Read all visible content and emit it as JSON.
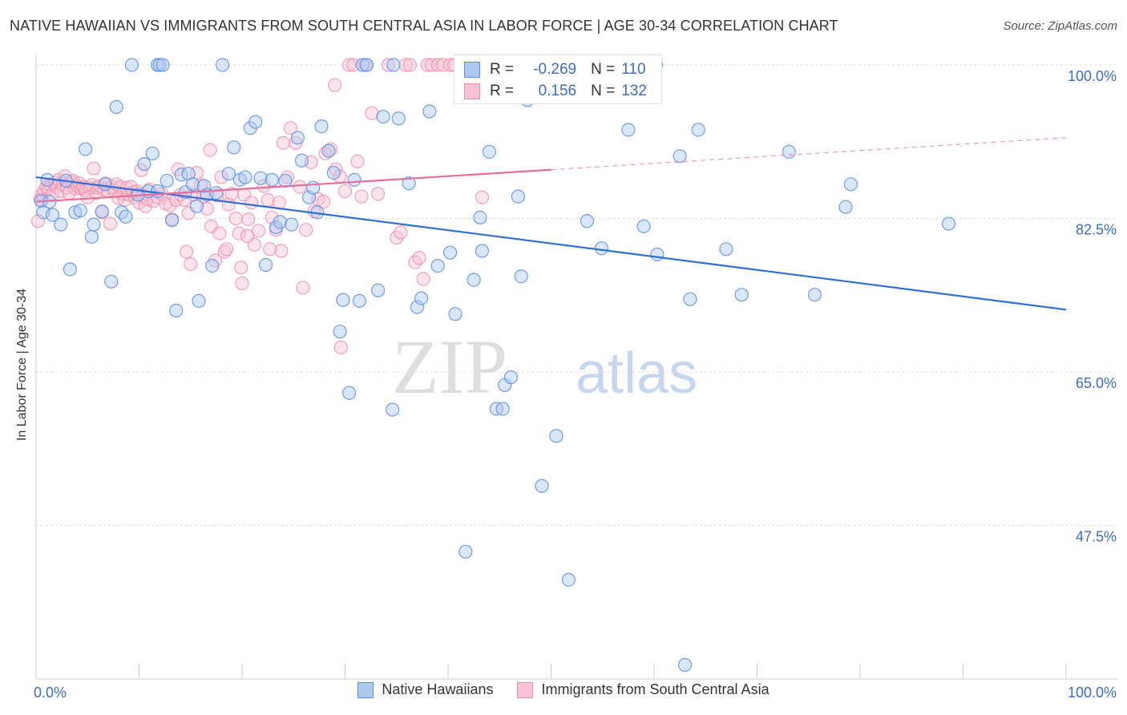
{
  "header": {
    "title": "NATIVE HAWAIIAN VS IMMIGRANTS FROM SOUTH CENTRAL ASIA IN LABOR FORCE | AGE 30-34 CORRELATION CHART",
    "source": "Source: ZipAtlas.com"
  },
  "watermark": {
    "zip": "ZIP",
    "atlas": "atlas"
  },
  "stats": {
    "blue": {
      "r_label": "R =",
      "r_value": "-0.269",
      "n_label": "N =",
      "n_value": "110"
    },
    "pink": {
      "r_label": "R =",
      "r_value": "0.156",
      "n_label": "N =",
      "n_value": "132"
    }
  },
  "legend": {
    "blue_label": "Native Hawaiians",
    "pink_label": "Immigrants from South Central Asia"
  },
  "colors": {
    "blue": "#5b8ee6",
    "blue_fill": "#aec8f2",
    "blue_line": "#2f6fd1",
    "pink": "#f08cab",
    "pink_fill": "#f7c3d3",
    "pink_line": "#e4709a",
    "axis_text": "#3d6cc8",
    "grid": "#dddddd"
  },
  "chart_data": {
    "type": "scatter",
    "title": "NATIVE HAWAIIAN VS IMMIGRANTS FROM SOUTH CENTRAL ASIA IN LABOR FORCE | AGE 30-34 CORRELATION CHART",
    "xlabel": "",
    "ylabel": "In Labor Force | Age 30-34",
    "xlim": [
      0,
      100
    ],
    "ylim": [
      30,
      100
    ],
    "x_tick_labels": [
      "0.0%",
      "100.0%"
    ],
    "y_ticks": [
      47.5,
      65.0,
      82.5,
      100.0
    ],
    "y_tick_labels": [
      "47.5%",
      "65.0%",
      "82.5%",
      "100.0%"
    ],
    "grid": true,
    "legend_position": "bottom",
    "series": [
      {
        "name": "Native Hawaiians",
        "color": "#5b8ee6",
        "r": -0.269,
        "n": 110,
        "trend": {
          "x": [
            0,
            100
          ],
          "y": [
            87.2,
            72.1
          ],
          "style": "solid"
        },
        "points": [
          [
            0.5,
            84.5
          ],
          [
            0.7,
            83.2
          ],
          [
            1.1,
            86.9
          ],
          [
            1.3,
            84.4
          ],
          [
            1.6,
            82.9
          ],
          [
            2.4,
            81.8
          ],
          [
            2.9,
            86.8
          ],
          [
            3.3,
            76.7
          ],
          [
            3.8,
            83.2
          ],
          [
            4.3,
            83.4
          ],
          [
            4.8,
            90.4
          ],
          [
            5.4,
            80.4
          ],
          [
            5.6,
            81.8
          ],
          [
            6.4,
            83.3
          ],
          [
            6.7,
            86.4
          ],
          [
            7.3,
            75.3
          ],
          [
            7.8,
            95.2
          ],
          [
            8.3,
            83.2
          ],
          [
            8.7,
            82.7
          ],
          [
            9.3,
            100
          ],
          [
            9.9,
            85.2
          ],
          [
            10.5,
            88.7
          ],
          [
            10.9,
            85.6
          ],
          [
            11.3,
            89.9
          ],
          [
            11.8,
            85.6
          ],
          [
            11.8,
            100
          ],
          [
            12.0,
            100
          ],
          [
            12.3,
            100
          ],
          [
            12.7,
            86.8
          ],
          [
            13.2,
            82.3
          ],
          [
            13.6,
            72.0
          ],
          [
            14.1,
            87.5
          ],
          [
            14.5,
            85.5
          ],
          [
            14.8,
            87.6
          ],
          [
            15.2,
            86.4
          ],
          [
            15.6,
            83.9
          ],
          [
            15.8,
            73.1
          ],
          [
            16.3,
            86.2
          ],
          [
            16.6,
            85.2
          ],
          [
            17.1,
            77.1
          ],
          [
            17.5,
            85.4
          ],
          [
            18.1,
            100
          ],
          [
            18.7,
            87.6
          ],
          [
            19.2,
            90.6
          ],
          [
            19.8,
            86.9
          ],
          [
            20.3,
            87.2
          ],
          [
            20.8,
            92.8
          ],
          [
            21.3,
            93.5
          ],
          [
            21.8,
            87.1
          ],
          [
            22.3,
            77.2
          ],
          [
            22.9,
            86.9
          ],
          [
            23.3,
            81.5
          ],
          [
            23.7,
            82.1
          ],
          [
            24.2,
            86.8
          ],
          [
            24.8,
            81.8
          ],
          [
            25.4,
            91.7
          ],
          [
            25.8,
            89.1
          ],
          [
            26.5,
            84.9
          ],
          [
            26.9,
            86.0
          ],
          [
            27.3,
            83.2
          ],
          [
            27.7,
            93.0
          ],
          [
            28.4,
            90.2
          ],
          [
            28.9,
            87.7
          ],
          [
            29.5,
            69.6
          ],
          [
            29.8,
            73.2
          ],
          [
            30.4,
            62.6
          ],
          [
            30.9,
            86.9
          ],
          [
            31.4,
            73.1
          ],
          [
            31.7,
            100
          ],
          [
            32.1,
            100
          ],
          [
            33.2,
            74.3
          ],
          [
            33.7,
            94.1
          ],
          [
            34.6,
            60.7
          ],
          [
            34.7,
            100
          ],
          [
            35.2,
            93.9
          ],
          [
            36.2,
            86.5
          ],
          [
            37.0,
            72.4
          ],
          [
            37.4,
            73.4
          ],
          [
            38.2,
            94.7
          ],
          [
            39.0,
            77.1
          ],
          [
            40.2,
            78.6
          ],
          [
            40.7,
            71.6
          ],
          [
            41.7,
            44.5
          ],
          [
            42.5,
            75.5
          ],
          [
            43.1,
            82.6
          ],
          [
            43.3,
            78.8
          ],
          [
            44.0,
            90.1
          ],
          [
            44.7,
            60.8
          ],
          [
            45.3,
            60.8
          ],
          [
            45.5,
            63.5
          ],
          [
            46.1,
            64.4
          ],
          [
            46.8,
            85.0
          ],
          [
            47.1,
            75.9
          ],
          [
            47.7,
            96.0
          ],
          [
            49.1,
            52.0
          ],
          [
            50.5,
            57.7
          ],
          [
            51.7,
            41.3
          ],
          [
            53.5,
            82.2
          ],
          [
            54.9,
            79.1
          ],
          [
            57.5,
            92.6
          ],
          [
            59.0,
            81.6
          ],
          [
            60.3,
            78.4
          ],
          [
            62.5,
            89.6
          ],
          [
            63.5,
            73.3
          ],
          [
            64.3,
            92.6
          ],
          [
            67.0,
            79.0
          ],
          [
            68.5,
            73.8
          ],
          [
            73.1,
            90.1
          ],
          [
            75.6,
            73.8
          ],
          [
            78.6,
            83.8
          ],
          [
            79.1,
            86.4
          ],
          [
            88.6,
            81.9
          ],
          [
            63.0,
            31.6
          ],
          [
            60.2,
            100
          ]
        ]
      },
      {
        "name": "Immigrants from South Central Asia",
        "color": "#f08cab",
        "r": 0.156,
        "n": 132,
        "trend": {
          "x": [
            0,
            100
          ],
          "y": [
            84.4,
            91.7
          ],
          "style": "solid-to-dashed",
          "solid_until": 50
        },
        "points": [
          [
            0.2,
            82.2
          ],
          [
            0.4,
            84.7
          ],
          [
            0.6,
            85.2
          ],
          [
            0.8,
            85.7
          ],
          [
            1.0,
            86.1
          ],
          [
            1.2,
            85.9
          ],
          [
            1.4,
            86.3
          ],
          [
            1.6,
            85.3
          ],
          [
            1.8,
            86.6
          ],
          [
            2.0,
            86.1
          ],
          [
            2.2,
            86.9
          ],
          [
            2.4,
            85.6
          ],
          [
            2.6,
            86.4
          ],
          [
            2.8,
            87.3
          ],
          [
            3.0,
            86.0
          ],
          [
            3.2,
            85.4
          ],
          [
            3.4,
            86.7
          ],
          [
            3.6,
            86.8
          ],
          [
            3.8,
            85.9
          ],
          [
            4.0,
            86.2
          ],
          [
            4.2,
            86.5
          ],
          [
            4.4,
            85.9
          ],
          [
            4.6,
            86.1
          ],
          [
            4.8,
            85.7
          ],
          [
            5.0,
            84.9
          ],
          [
            5.2,
            86.0
          ],
          [
            5.4,
            86.3
          ],
          [
            5.6,
            88.2
          ],
          [
            5.8,
            85.4
          ],
          [
            6.0,
            86.0
          ],
          [
            6.2,
            86.2
          ],
          [
            6.4,
            83.2
          ],
          [
            6.6,
            85.8
          ],
          [
            6.8,
            86.5
          ],
          [
            7.0,
            85.6
          ],
          [
            7.2,
            81.9
          ],
          [
            7.4,
            86.1
          ],
          [
            7.6,
            85.7
          ],
          [
            7.8,
            86.4
          ],
          [
            8.0,
            84.8
          ],
          [
            8.2,
            86.1
          ],
          [
            8.4,
            85.3
          ],
          [
            8.6,
            84.6
          ],
          [
            8.8,
            86.0
          ],
          [
            9.0,
            85.2
          ],
          [
            9.2,
            86.1
          ],
          [
            9.4,
            85.5
          ],
          [
            9.6,
            84.9
          ],
          [
            9.8,
            85.6
          ],
          [
            10.0,
            84.3
          ],
          [
            10.2,
            88.0
          ],
          [
            10.4,
            85.1
          ],
          [
            10.6,
            83.9
          ],
          [
            10.8,
            84.7
          ],
          [
            11.0,
            85.8
          ],
          [
            11.4,
            84.5
          ],
          [
            11.8,
            84.9
          ],
          [
            12.2,
            85.3
          ],
          [
            12.6,
            84.2
          ],
          [
            13.0,
            84.0
          ],
          [
            13.2,
            82.4
          ],
          [
            13.6,
            84.6
          ],
          [
            13.8,
            88.1
          ],
          [
            14.0,
            85.2
          ],
          [
            14.4,
            84.6
          ],
          [
            14.6,
            78.7
          ],
          [
            14.8,
            83.1
          ],
          [
            15.0,
            77.3
          ],
          [
            15.3,
            85.2
          ],
          [
            15.6,
            87.7
          ],
          [
            16.0,
            86.3
          ],
          [
            16.2,
            85.0
          ],
          [
            16.6,
            83.6
          ],
          [
            17.0,
            81.6
          ],
          [
            17.4,
            77.7
          ],
          [
            17.6,
            85.1
          ],
          [
            17.8,
            80.8
          ],
          [
            18.0,
            87.2
          ],
          [
            18.3,
            78.7
          ],
          [
            18.5,
            79.0
          ],
          [
            18.7,
            84.1
          ],
          [
            19.0,
            85.3
          ],
          [
            19.4,
            82.5
          ],
          [
            19.7,
            80.8
          ],
          [
            19.9,
            76.9
          ],
          [
            20.0,
            75.1
          ],
          [
            20.2,
            85.2
          ],
          [
            20.6,
            82.4
          ],
          [
            20.9,
            84.3
          ],
          [
            21.2,
            79.5
          ],
          [
            21.6,
            81.1
          ],
          [
            22.1,
            86.2
          ],
          [
            22.5,
            84.6
          ],
          [
            22.9,
            82.6
          ],
          [
            23.3,
            81.2
          ],
          [
            23.6,
            84.3
          ],
          [
            24.0,
            91.1
          ],
          [
            24.4,
            87.2
          ],
          [
            24.7,
            92.8
          ],
          [
            25.2,
            91.1
          ],
          [
            25.6,
            86.1
          ],
          [
            25.9,
            74.6
          ],
          [
            26.2,
            81.2
          ],
          [
            26.7,
            88.9
          ],
          [
            27.0,
            83.3
          ],
          [
            27.4,
            84.7
          ],
          [
            28.1,
            89.9
          ],
          [
            28.6,
            90.4
          ],
          [
            29.1,
            88.1
          ],
          [
            29.5,
            87.3
          ],
          [
            29.6,
            67.8
          ],
          [
            30.0,
            85.6
          ],
          [
            30.4,
            100
          ],
          [
            30.8,
            100
          ],
          [
            31.2,
            89.0
          ],
          [
            31.6,
            85.0
          ],
          [
            32.0,
            100
          ],
          [
            32.6,
            94.5
          ],
          [
            33.2,
            85.3
          ],
          [
            34.2,
            100
          ],
          [
            35.0,
            80.3
          ],
          [
            35.4,
            80.9
          ],
          [
            35.9,
            100
          ],
          [
            36.3,
            100
          ],
          [
            36.8,
            77.5
          ],
          [
            37.2,
            78.0
          ],
          [
            37.6,
            75.6
          ],
          [
            38.0,
            100
          ],
          [
            38.4,
            100
          ],
          [
            39.0,
            100
          ],
          [
            39.5,
            100
          ],
          [
            40.2,
            100
          ],
          [
            40.6,
            100
          ],
          [
            41.3,
            100
          ],
          [
            42.1,
            100
          ],
          [
            43.3,
            84.9
          ],
          [
            29.0,
            97.7
          ],
          [
            27.9,
            84.4
          ],
          [
            20.5,
            80.5
          ],
          [
            23.8,
            78.8
          ],
          [
            16.9,
            90.3
          ],
          [
            22.7,
            79.0
          ]
        ]
      }
    ]
  }
}
